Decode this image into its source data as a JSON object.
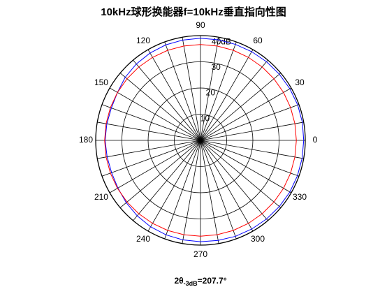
{
  "chart_data": {
    "type": "polar",
    "title": "10kHz球形换能器f=10kHz垂直指向性图",
    "footnote": {
      "main": "2θ",
      "sub": "-3dB",
      "tail": "=207.7°"
    },
    "x": [
      0,
      10,
      20,
      30,
      40,
      50,
      60,
      70,
      80,
      90,
      100,
      110,
      120,
      130,
      140,
      150,
      160,
      170,
      180,
      190,
      200,
      210,
      220,
      230,
      240,
      250,
      260,
      270,
      280,
      290,
      300,
      310,
      320,
      330,
      340,
      350
    ],
    "series": [
      {
        "color": "#0000ff",
        "values": [
          39.4,
          39.5,
          39.5,
          39.4,
          39.3,
          39.2,
          39.1,
          39,
          39,
          39,
          38.9,
          38.8,
          38.5,
          38.1,
          37.5,
          36.6,
          36.2,
          36.3,
          36.4,
          36.2,
          36.1,
          36.4,
          37,
          37.6,
          38.1,
          38.4,
          38.6,
          38.7,
          38.8,
          39,
          39.1,
          39.2,
          39.3,
          39.4,
          39.4,
          39.4
        ]
      },
      {
        "color": "#ff0000",
        "values": [
          36.6,
          36.6,
          36.6,
          36.6,
          36.6,
          36.6,
          36.6,
          36.6,
          36.6,
          36.6,
          36.6,
          36.6,
          36.6,
          36.6,
          36.6,
          36.6,
          36.6,
          36.6,
          36.6,
          36.6,
          36.6,
          36.6,
          36.6,
          36.6,
          36.6,
          36.6,
          36.6,
          36.6,
          36.6,
          36.6,
          36.6,
          36.6,
          36.6,
          36.6,
          36.6,
          36.6
        ]
      }
    ],
    "rlim": [
      0,
      40
    ],
    "rticks": [
      10,
      20,
      30,
      {
        "value": 40,
        "label": "40dB"
      }
    ],
    "thetaticks": [
      0,
      30,
      60,
      90,
      120,
      150,
      180,
      210,
      240,
      270,
      300,
      330
    ]
  }
}
